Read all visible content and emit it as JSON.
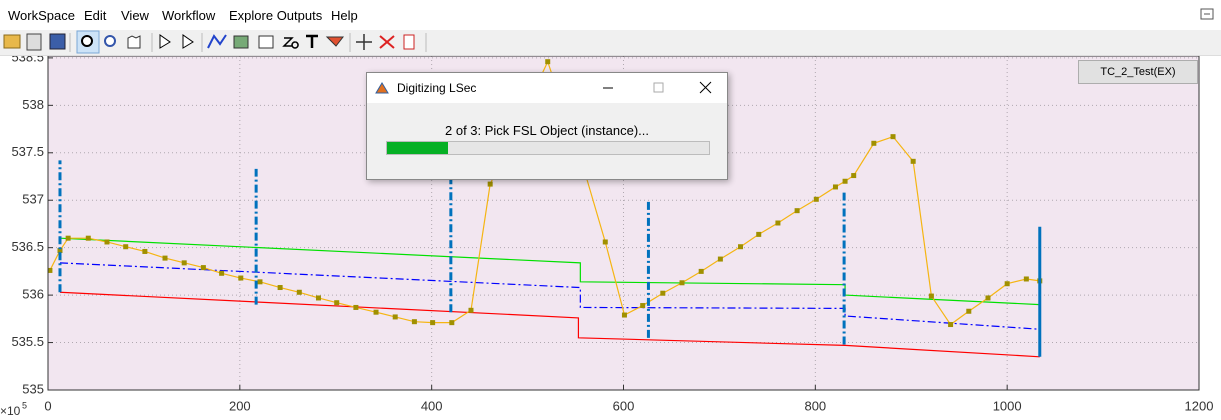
{
  "menu": {
    "items": [
      "WorkSpace",
      "Edit",
      "View",
      "Workflow",
      "Explore Outputs",
      "Help"
    ]
  },
  "legend_button": "TC_2_Test(EX)",
  "dialog": {
    "title": "Digitizing LSec",
    "message": "2 of 3: Pick FSL Object (instance)...",
    "progress": 19,
    "progress_color": "#06b025"
  },
  "chart_data": {
    "type": "line",
    "xlim": [
      0,
      1200
    ],
    "xticks": [
      0,
      200,
      400,
      600,
      800,
      1000,
      1200
    ],
    "ylim": [
      535,
      538.52
    ],
    "yticks": [
      535,
      535.5,
      536,
      536.5,
      537,
      537.5,
      538,
      538.5
    ],
    "grid": true,
    "background": "#f2e6f0",
    "x_exponent_base": "×10",
    "x_exponent": "5",
    "series": [
      {
        "color": "#00e000",
        "style": "solid",
        "marker": false,
        "x": [
          12.5,
          555,
          555,
          831,
          831,
          1034
        ],
        "values": [
          536.6,
          536.34,
          536.14,
          536.11,
          536.0,
          535.9
        ]
      },
      {
        "color": "#0000ff",
        "style": "dashdot",
        "marker": false,
        "x": [
          12.5,
          555,
          555,
          831,
          831,
          1034
        ],
        "values": [
          536.34,
          536.08,
          535.87,
          535.86,
          535.78,
          535.64
        ]
      },
      {
        "color": "#ff0000",
        "style": "solid",
        "marker": false,
        "x": [
          12.5,
          553,
          553,
          831,
          1034
        ],
        "values": [
          536.03,
          535.76,
          535.55,
          535.47,
          535.35
        ]
      },
      {
        "color": "#f5b512",
        "style": "solid",
        "marker": true,
        "marker_color": "#a09000",
        "x": [
          2,
          12.5,
          21,
          42,
          61.5,
          81,
          101,
          122,
          142,
          162,
          181,
          201,
          221,
          242,
          262,
          282,
          301,
          321,
          342,
          362,
          382,
          401,
          421,
          441,
          461,
          521,
          561,
          581,
          601,
          620,
          641,
          661,
          681,
          701,
          722,
          741,
          761,
          781,
          801,
          821,
          831,
          840,
          861,
          881,
          902,
          921,
          941,
          960,
          980,
          1000,
          1020,
          1034
        ],
        "values": [
          536.26,
          536.47,
          536.6,
          536.6,
          536.56,
          536.51,
          536.46,
          536.39,
          536.34,
          536.29,
          536.23,
          536.18,
          536.14,
          536.08,
          536.03,
          535.97,
          535.92,
          535.87,
          535.82,
          535.77,
          535.72,
          535.71,
          535.71,
          535.84,
          537.17,
          538.46,
          537.25,
          536.56,
          535.79,
          535.89,
          536.02,
          536.13,
          536.25,
          536.38,
          536.51,
          536.64,
          536.76,
          536.89,
          537.01,
          537.14,
          537.2,
          537.26,
          537.6,
          537.67,
          537.41,
          535.99,
          535.69,
          535.83,
          535.97,
          536.12,
          536.17,
          536.15
        ]
      }
    ],
    "vlines": [
      {
        "x": 12.5,
        "ymin": 536.03,
        "ymax": 537.42,
        "style": "dashdot",
        "color": "#0072bd"
      },
      {
        "x": 217,
        "ymin": 535.9,
        "ymax": 537.33,
        "style": "dashdot",
        "color": "#0072bd"
      },
      {
        "x": 420,
        "ymin": 535.82,
        "ymax": 537.3,
        "style": "dashdot",
        "color": "#0072bd"
      },
      {
        "x": 626,
        "ymin": 535.55,
        "ymax": 537.0,
        "style": "dashdot",
        "color": "#0072bd"
      },
      {
        "x": 830,
        "ymin": 535.48,
        "ymax": 537.08,
        "style": "dashdot",
        "color": "#0072bd"
      },
      {
        "x": 1034,
        "ymin": 535.35,
        "ymax": 536.72,
        "style": "solid",
        "color": "#0072bd"
      }
    ]
  }
}
